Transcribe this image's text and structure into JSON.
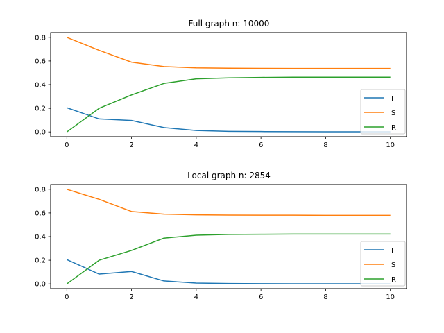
{
  "chart_data": [
    {
      "type": "line",
      "title": "Full graph n: 10000",
      "xlabel": "",
      "ylabel": "",
      "x": [
        0,
        1,
        2,
        3,
        4,
        5,
        6,
        7,
        8,
        9,
        10
      ],
      "series": [
        {
          "name": "I",
          "color": "#1f77b4",
          "values": [
            0.205,
            0.11,
            0.097,
            0.037,
            0.012,
            0.005,
            0.003,
            0.002,
            0.001,
            0.001,
            0.001
          ]
        },
        {
          "name": "S",
          "color": "#ff7f0e",
          "values": [
            0.8,
            0.69,
            0.59,
            0.553,
            0.542,
            0.539,
            0.538,
            0.537,
            0.537,
            0.537,
            0.537
          ]
        },
        {
          "name": "R",
          "color": "#2ca02c",
          "values": [
            0.0,
            0.2,
            0.313,
            0.41,
            0.449,
            0.457,
            0.461,
            0.463,
            0.463,
            0.463,
            0.463
          ]
        }
      ],
      "xlim": [
        -0.5,
        10.5
      ],
      "ylim": [
        -0.04,
        0.84
      ],
      "xticks": [
        0,
        2,
        4,
        6,
        8,
        10
      ],
      "yticks": [
        0.0,
        0.2,
        0.4,
        0.6,
        0.8
      ],
      "ytick_labels": [
        "0.0",
        "0.2",
        "0.4",
        "0.6",
        "0.8"
      ],
      "legend_position": "lower-right",
      "grid": false
    },
    {
      "type": "line",
      "title": "Local graph n: 2854",
      "xlabel": "",
      "ylabel": "",
      "x": [
        0,
        1,
        2,
        3,
        4,
        5,
        6,
        7,
        8,
        9,
        10
      ],
      "series": [
        {
          "name": "I",
          "color": "#1f77b4",
          "values": [
            0.205,
            0.083,
            0.105,
            0.025,
            0.007,
            0.003,
            0.002,
            0.001,
            0.001,
            0.001,
            0.001
          ]
        },
        {
          "name": "S",
          "color": "#ff7f0e",
          "values": [
            0.8,
            0.715,
            0.612,
            0.59,
            0.584,
            0.582,
            0.581,
            0.581,
            0.58,
            0.58,
            0.58
          ]
        },
        {
          "name": "R",
          "color": "#2ca02c",
          "values": [
            0.0,
            0.2,
            0.283,
            0.387,
            0.412,
            0.418,
            0.42,
            0.421,
            0.421,
            0.421,
            0.421
          ]
        }
      ],
      "xlim": [
        -0.5,
        10.5
      ],
      "ylim": [
        -0.04,
        0.84
      ],
      "xticks": [
        0,
        2,
        4,
        6,
        8,
        10
      ],
      "yticks": [
        0.0,
        0.2,
        0.4,
        0.6,
        0.8
      ],
      "ytick_labels": [
        "0.0",
        "0.2",
        "0.4",
        "0.6",
        "0.8"
      ],
      "legend_position": "lower-right",
      "grid": false
    }
  ]
}
